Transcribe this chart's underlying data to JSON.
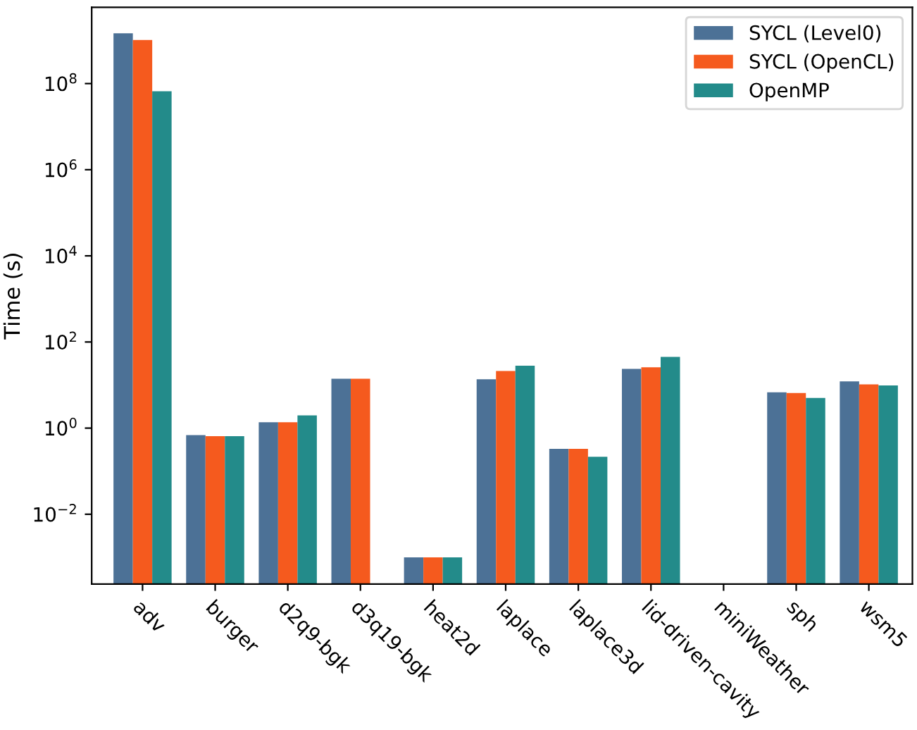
{
  "chart_data": {
    "type": "bar",
    "ylabel": "Time (s)",
    "log": true,
    "legend": "top right",
    "grid": false,
    "categories": [
      "adv",
      "burger",
      "d2q9-bgk",
      "d3q19-bgk",
      "heat2d",
      "laplace",
      "laplace3d",
      "lid-driven-cavity",
      "miniWeather",
      "sph",
      "wsm5"
    ],
    "ylim": [
      0.00024,
      5900000000.0
    ],
    "yticks": [
      {
        "value": 0.01,
        "label": "10$^{−2}$"
      },
      {
        "value": 1,
        "label": "10$^{0}$"
      },
      {
        "value": 100,
        "label": "10$^{2}$"
      },
      {
        "value": 10000,
        "label": "10$^{4}$"
      },
      {
        "value": 1000000,
        "label": "10$^{6}$"
      },
      {
        "value": 100000000,
        "label": "10$^{8}$"
      }
    ],
    "series": [
      {
        "name": "SYCL (Level0)",
        "color": "#4c7196",
        "values": [
          1470000000.0,
          0.69,
          1.37,
          14.0,
          0.001,
          13.6,
          0.33,
          23.7,
          null,
          6.8,
          12.2
        ]
      },
      {
        "name": "SYCL (OpenCL)",
        "color": "#f55a1e",
        "values": [
          1030000000.0,
          0.65,
          1.37,
          14.0,
          0.001,
          21.2,
          0.33,
          25.8,
          null,
          6.5,
          10.4
        ]
      },
      {
        "name": "OpenMP",
        "color": "#238b8a",
        "values": [
          66000000.0,
          0.65,
          1.97,
          null,
          0.001,
          28.0,
          0.215,
          44.9,
          null,
          5.0,
          9.8
        ]
      }
    ]
  }
}
